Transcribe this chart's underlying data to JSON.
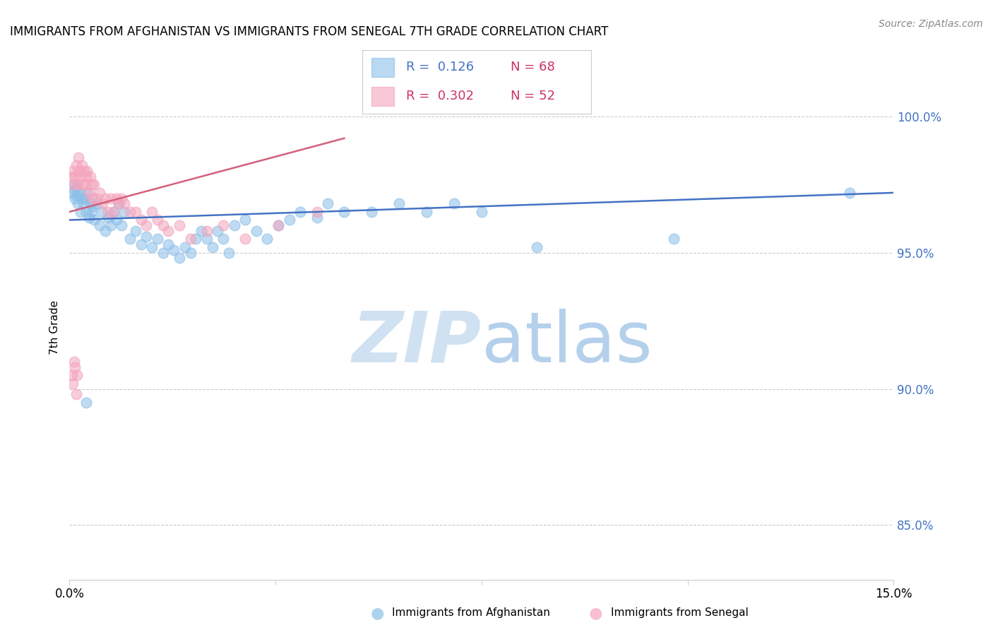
{
  "title": "IMMIGRANTS FROM AFGHANISTAN VS IMMIGRANTS FROM SENEGAL 7TH GRADE CORRELATION CHART",
  "source": "Source: ZipAtlas.com",
  "ylabel": "7th Grade",
  "xlim": [
    0.0,
    15.0
  ],
  "ylim": [
    83.0,
    101.5
  ],
  "yticks": [
    85.0,
    90.0,
    95.0,
    100.0
  ],
  "ytick_labels": [
    "85.0%",
    "90.0%",
    "95.0%",
    "100.0%"
  ],
  "xticks": [
    0.0,
    3.75,
    7.5,
    11.25,
    15.0
  ],
  "xtick_labels": [
    "0.0%",
    "",
    "",
    "",
    "15.0%"
  ],
  "color_afghanistan": "#8bbfe8",
  "color_senegal": "#f4a4bc",
  "line_color_afghanistan": "#4472c4",
  "line_color_senegal": "#d45f7a",
  "afghanistan_x": [
    0.05,
    0.08,
    0.1,
    0.1,
    0.12,
    0.13,
    0.15,
    0.18,
    0.2,
    0.22,
    0.25,
    0.28,
    0.3,
    0.32,
    0.35,
    0.38,
    0.4,
    0.42,
    0.45,
    0.5,
    0.55,
    0.6,
    0.65,
    0.7,
    0.75,
    0.8,
    0.85,
    0.9,
    0.95,
    1.0,
    1.1,
    1.2,
    1.3,
    1.4,
    1.5,
    1.6,
    1.7,
    1.8,
    1.9,
    2.0,
    2.1,
    2.2,
    2.3,
    2.4,
    2.5,
    2.6,
    2.7,
    2.8,
    2.9,
    3.0,
    3.2,
    3.4,
    3.6,
    3.8,
    4.0,
    4.2,
    4.5,
    4.7,
    5.0,
    5.5,
    6.0,
    6.5,
    7.0,
    7.5,
    8.5,
    11.0,
    14.2,
    0.3
  ],
  "afghanistan_y": [
    97.2,
    97.5,
    97.0,
    97.3,
    97.1,
    97.4,
    96.8,
    97.2,
    96.5,
    97.0,
    96.8,
    97.0,
    96.5,
    97.2,
    96.3,
    96.8,
    96.5,
    96.7,
    96.2,
    96.8,
    96.0,
    96.5,
    95.8,
    96.3,
    96.0,
    96.5,
    96.2,
    96.8,
    96.0,
    96.5,
    95.5,
    95.8,
    95.3,
    95.6,
    95.2,
    95.5,
    95.0,
    95.3,
    95.1,
    94.8,
    95.2,
    95.0,
    95.5,
    95.8,
    95.5,
    95.2,
    95.8,
    95.5,
    95.0,
    96.0,
    96.2,
    95.8,
    95.5,
    96.0,
    96.2,
    96.5,
    96.3,
    96.8,
    96.5,
    96.5,
    96.8,
    96.5,
    96.8,
    96.5,
    95.2,
    95.5,
    97.2,
    89.5
  ],
  "senegal_x": [
    0.04,
    0.06,
    0.08,
    0.1,
    0.12,
    0.14,
    0.16,
    0.18,
    0.2,
    0.22,
    0.24,
    0.26,
    0.28,
    0.3,
    0.32,
    0.35,
    0.38,
    0.4,
    0.42,
    0.45,
    0.5,
    0.55,
    0.6,
    0.65,
    0.7,
    0.75,
    0.8,
    0.85,
    0.9,
    0.95,
    1.0,
    1.1,
    1.2,
    1.3,
    1.4,
    1.5,
    1.6,
    1.7,
    1.8,
    2.0,
    2.2,
    2.5,
    2.8,
    3.2,
    3.8,
    4.5,
    0.04,
    0.06,
    0.08,
    0.1,
    0.12,
    0.14
  ],
  "senegal_y": [
    97.8,
    98.0,
    97.5,
    97.8,
    98.2,
    97.5,
    98.5,
    98.0,
    97.8,
    98.2,
    97.5,
    98.0,
    97.5,
    97.8,
    98.0,
    97.2,
    97.8,
    97.5,
    97.0,
    97.5,
    97.0,
    97.2,
    96.8,
    97.0,
    96.5,
    97.0,
    96.5,
    97.0,
    96.8,
    97.0,
    96.8,
    96.5,
    96.5,
    96.2,
    96.0,
    96.5,
    96.2,
    96.0,
    95.8,
    96.0,
    95.5,
    95.8,
    96.0,
    95.5,
    96.0,
    96.5,
    90.5,
    90.2,
    91.0,
    90.8,
    89.8,
    90.5
  ],
  "af_trend_x": [
    0.0,
    15.0
  ],
  "af_trend_y": [
    96.2,
    97.2
  ],
  "sn_trend_x": [
    0.0,
    5.0
  ],
  "sn_trend_y": [
    96.5,
    99.2
  ]
}
